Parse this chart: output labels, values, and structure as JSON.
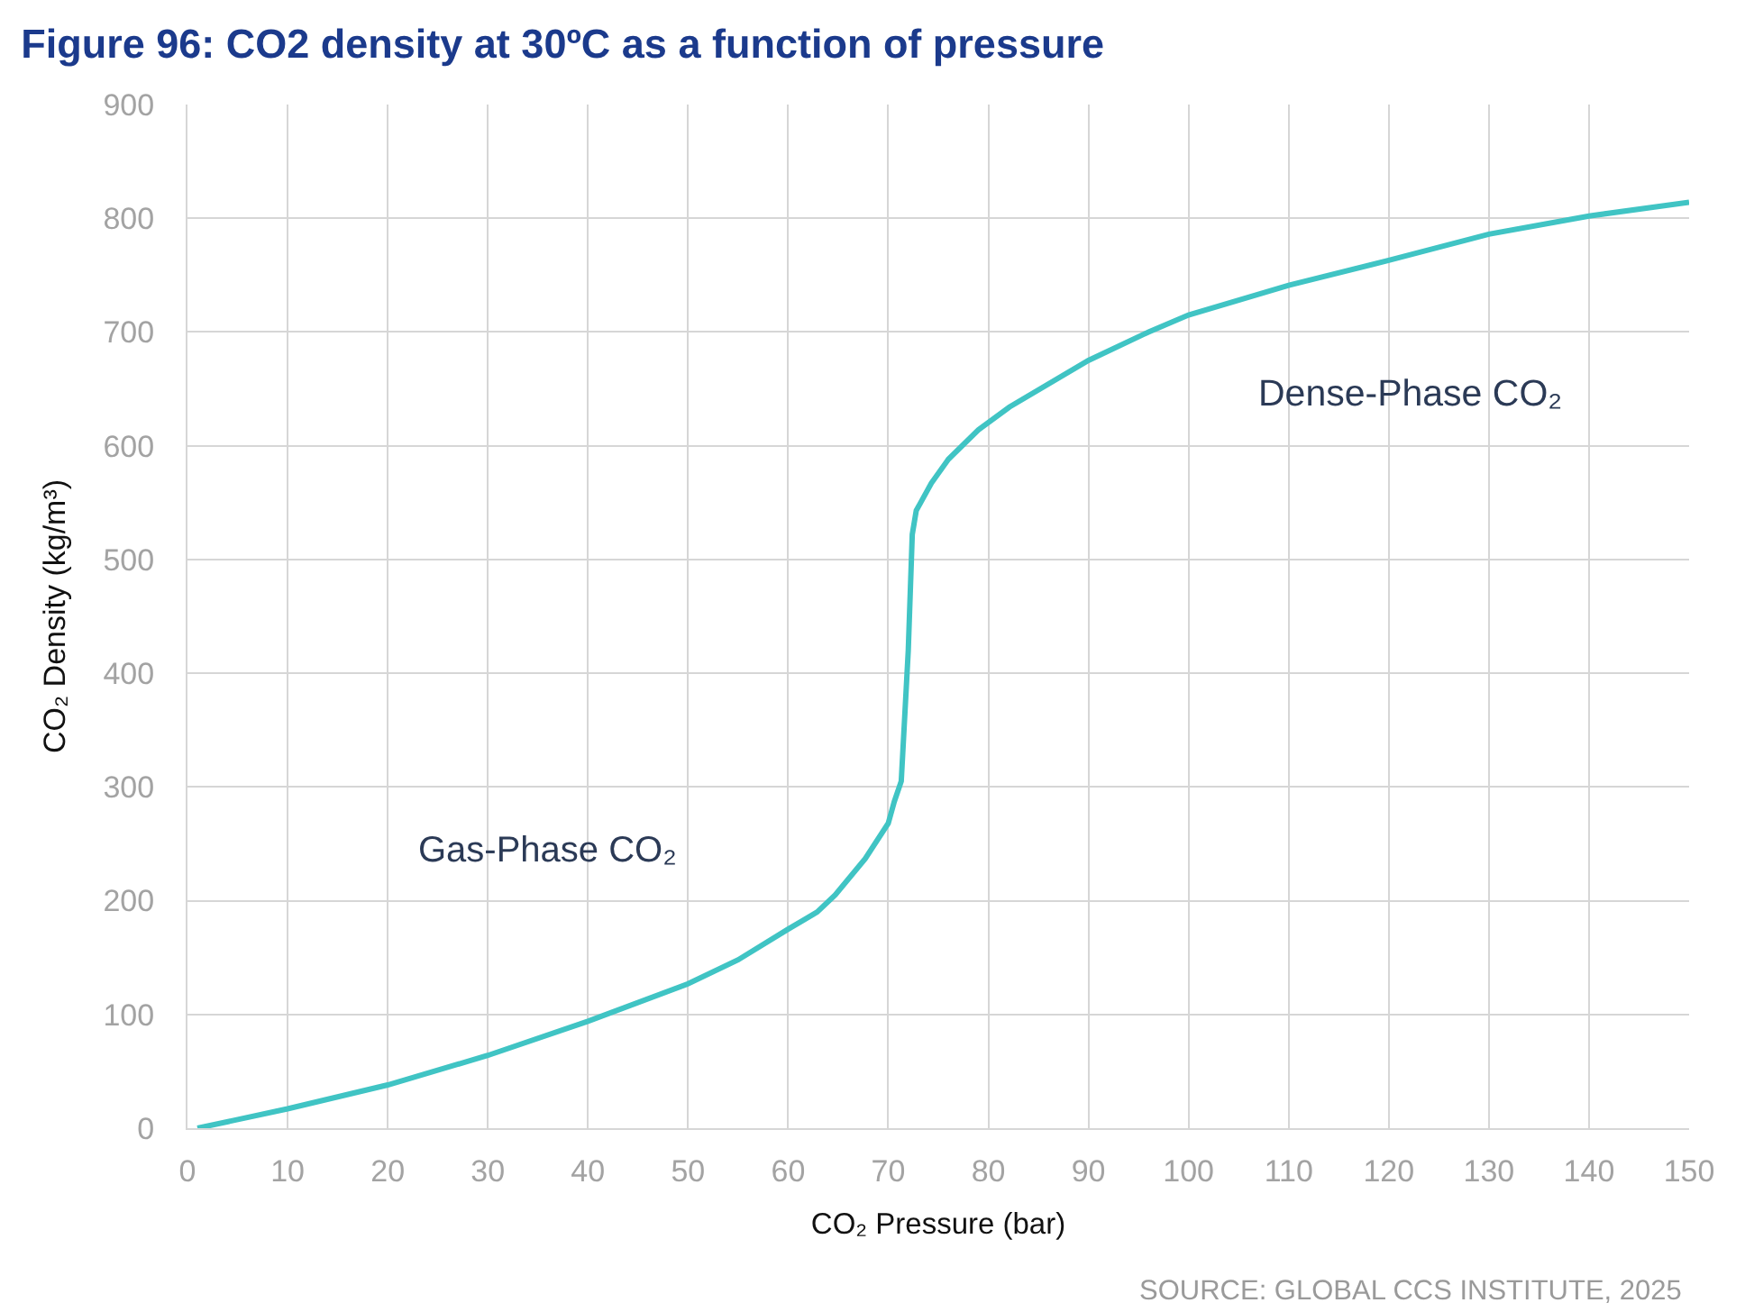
{
  "chart_data": {
    "type": "line",
    "title": "Figure 96: CO2 density at 30ºC as a function of pressure",
    "xlabel": "CO₂ Pressure (bar)",
    "ylabel": "CO₂ Density (kg/m³)",
    "x": [
      1,
      10,
      20,
      30,
      40,
      50,
      55,
      60,
      62.9,
      64.7,
      67.7,
      70,
      70.6,
      71.3,
      72,
      72.4,
      72.8,
      74.3,
      76,
      79,
      82.1,
      90,
      96,
      100,
      110,
      120,
      130,
      140,
      150
    ],
    "series": [
      {
        "color": "#40c4c4",
        "values": [
          0,
          17,
          38,
          64,
          94,
          127,
          148,
          175,
          190,
          205,
          237,
          268,
          287,
          305,
          420,
          522,
          543,
          567,
          588,
          614,
          634,
          675,
          700,
          715,
          741,
          763,
          786,
          802,
          814
        ]
      }
    ],
    "xlim": [
      0,
      150
    ],
    "xticks": [
      0,
      10,
      20,
      30,
      40,
      50,
      60,
      70,
      80,
      90,
      100,
      110,
      120,
      130,
      140,
      150
    ],
    "ylim": [
      0,
      900
    ],
    "yticks": [
      0,
      100,
      200,
      300,
      400,
      500,
      600,
      700,
      800,
      900
    ],
    "grid": true,
    "line_style": "solid",
    "annotations": [
      "Gas-Phase CO₂",
      "Dense-Phase CO₂",
      "SOURCE: GLOBAL CCS INSTITUTE, 2025"
    ]
  }
}
